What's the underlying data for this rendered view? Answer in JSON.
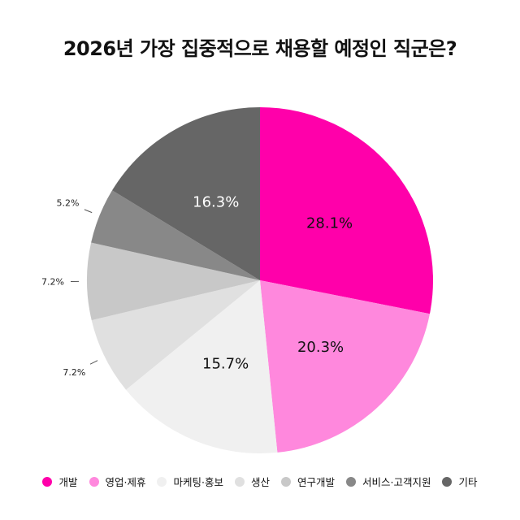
{
  "title": "2026년 가장 집중적으로 채용할 예정인 직군은?",
  "chart_data": {
    "type": "pie",
    "title": "2026년 가장 집중적으로 채용할 예정인 직군은?",
    "categories": [
      "개발",
      "영업·제휴",
      "마케팅·홍보",
      "생산",
      "연구개발",
      "서비스·고객지원",
      "기타"
    ],
    "values": [
      28.1,
      20.3,
      15.7,
      7.2,
      7.2,
      5.2,
      16.3
    ],
    "labels": [
      "28.1%",
      "20.3%",
      "15.7%",
      "7.2%",
      "7.2%",
      "5.2%",
      "16.3%"
    ],
    "colors": [
      "#FF00AA",
      "#FF88DD",
      "#F0F0F0",
      "#E0E0E0",
      "#C8C8C8",
      "#888888",
      "#666666"
    ],
    "label_colors": [
      "#111111",
      "#111111",
      "#111111",
      "#111111",
      "#111111",
      "#111111",
      "#FFFFFF"
    ],
    "label_outside": [
      false,
      false,
      false,
      true,
      true,
      true,
      false
    ],
    "start_angle": "12 o'clock, clockwise",
    "legend_position": "bottom"
  },
  "legend": [
    {
      "label": "개발",
      "color": "#FF00AA"
    },
    {
      "label": "영업·제휴",
      "color": "#FF88DD"
    },
    {
      "label": "마케팅·홍보",
      "color": "#F0F0F0"
    },
    {
      "label": "생산",
      "color": "#E0E0E0"
    },
    {
      "label": "연구개발",
      "color": "#C8C8C8"
    },
    {
      "label": "서비스·고객지원",
      "color": "#888888"
    },
    {
      "label": "기타",
      "color": "#666666"
    }
  ]
}
